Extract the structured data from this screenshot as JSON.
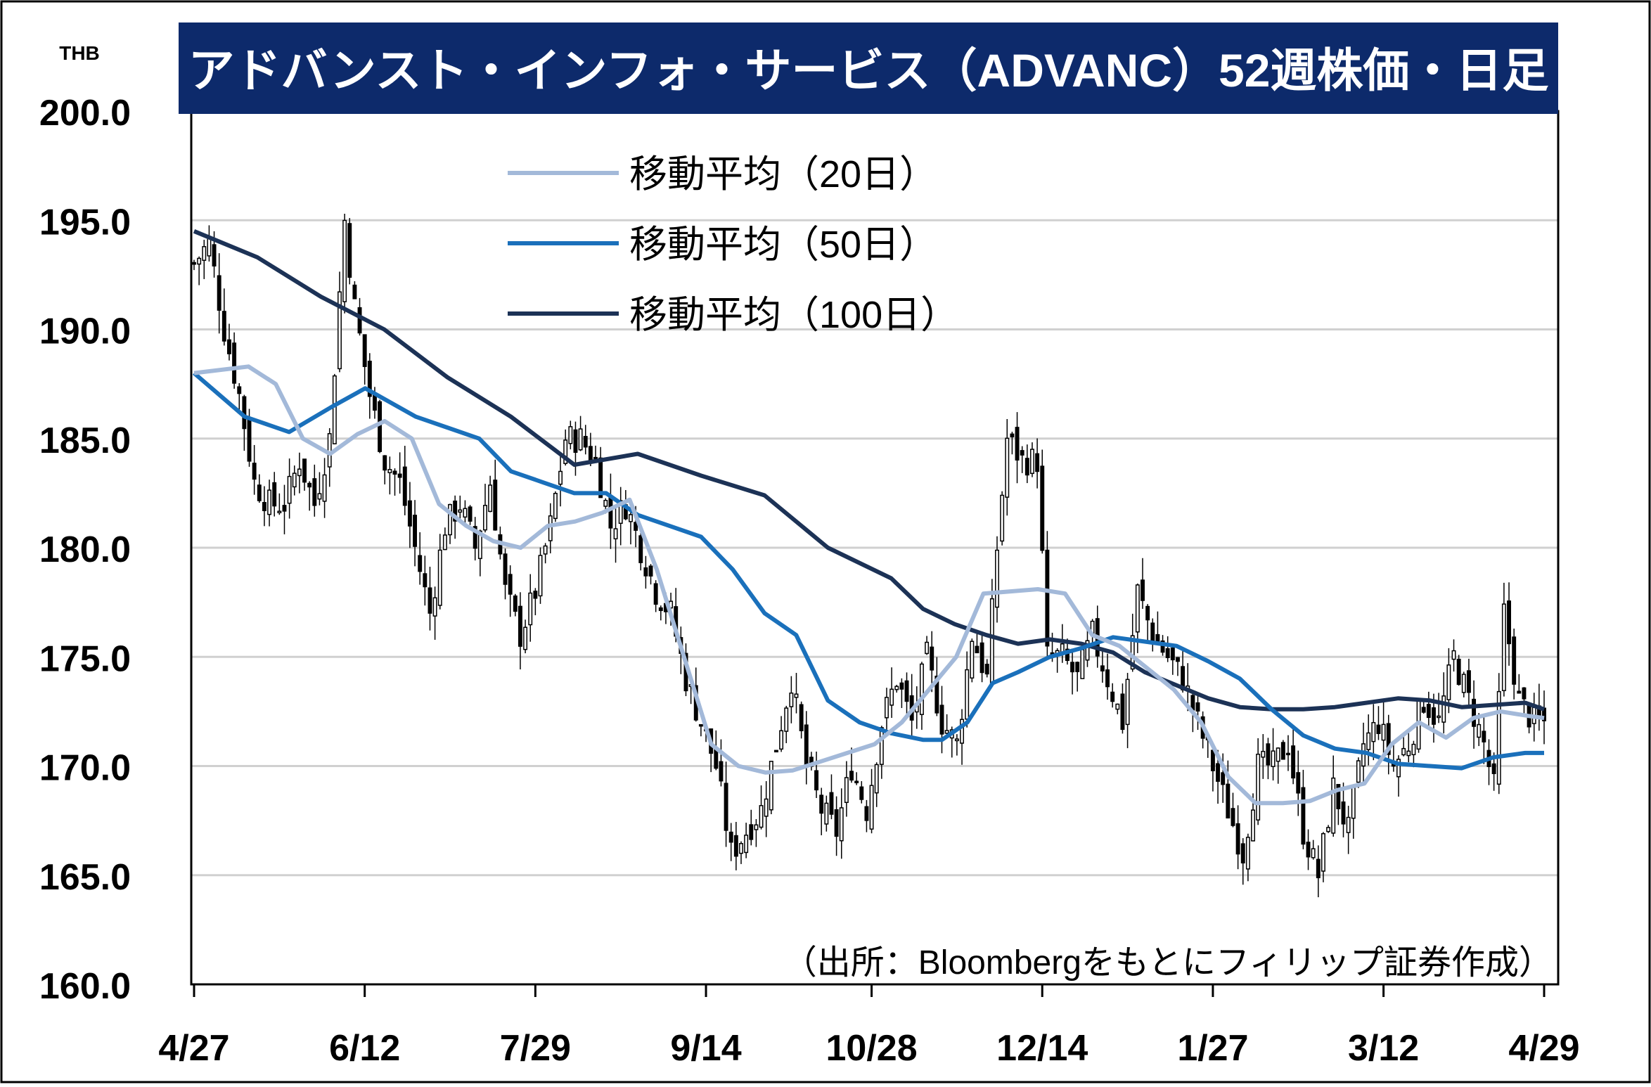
{
  "title": "アドバンスト・インフォ・サービス（ADVANC）52週株価・日足",
  "source_note": "（出所：Bloombergをもとにフィリップ証券作成）",
  "colors": {
    "title_bg": "#0d2a6b",
    "title_text": "#ffffff",
    "ma20": "#a3b9d9",
    "ma50": "#1a70bb",
    "ma100": "#1c3256",
    "candle_stroke": "#000000",
    "bear_fill": "#000000",
    "bull_fill": "#ffffff",
    "grid": "#d0d0d0",
    "frame": "#000000"
  },
  "chart_data": {
    "type": "candlestick",
    "ylabel": "THB",
    "ylim": [
      160,
      200
    ],
    "ytick_step": 5,
    "y_tick_labels": [
      "160.0",
      "165.0",
      "170.0",
      "175.0",
      "180.0",
      "185.0",
      "190.0",
      "195.0",
      "200.0"
    ],
    "x_tick_labels": [
      "4/27",
      "6/12",
      "7/29",
      "9/14",
      "10/28",
      "12/14",
      "1/27",
      "3/12",
      "4/29"
    ],
    "grid": true,
    "legend": [
      {
        "key": "ma20",
        "label": "移動平均（20日）"
      },
      {
        "key": "ma50",
        "label": "移動平均（50日）"
      },
      {
        "key": "ma100",
        "label": "移動平均（100日）"
      }
    ],
    "legend_position": "top-center",
    "close_anchors": [
      [
        0,
        193
      ],
      [
        3,
        194
      ],
      [
        6,
        190
      ],
      [
        9,
        187
      ],
      [
        12,
        183
      ],
      [
        15,
        182
      ],
      [
        18,
        182
      ],
      [
        21,
        184
      ],
      [
        24,
        182
      ],
      [
        27,
        185
      ],
      [
        30,
        195
      ],
      [
        32,
        191
      ],
      [
        35,
        187
      ],
      [
        38,
        184
      ],
      [
        41,
        183
      ],
      [
        44,
        180
      ],
      [
        47,
        177
      ],
      [
        50,
        181
      ],
      [
        53,
        182
      ],
      [
        56,
        180
      ],
      [
        59,
        183
      ],
      [
        62,
        178
      ],
      [
        65,
        176
      ],
      [
        68,
        178
      ],
      [
        71,
        181
      ],
      [
        74,
        185
      ],
      [
        77,
        185
      ],
      [
        80,
        184
      ],
      [
        83,
        181
      ],
      [
        86,
        182
      ],
      [
        89,
        180
      ],
      [
        92,
        178
      ],
      [
        95,
        177
      ],
      [
        98,
        174
      ],
      [
        101,
        172
      ],
      [
        104,
        170
      ],
      [
        107,
        166
      ],
      [
        110,
        167
      ],
      [
        113,
        168
      ],
      [
        116,
        171
      ],
      [
        119,
        174
      ],
      [
        122,
        170
      ],
      [
        125,
        168
      ],
      [
        128,
        167
      ],
      [
        131,
        170
      ],
      [
        134,
        168
      ],
      [
        137,
        172
      ],
      [
        140,
        174
      ],
      [
        143,
        172
      ],
      [
        146,
        175
      ],
      [
        149,
        172
      ],
      [
        152,
        171
      ],
      [
        155,
        176
      ],
      [
        158,
        174
      ],
      [
        160,
        180
      ],
      [
        162,
        185
      ],
      [
        165,
        184
      ],
      [
        168,
        184
      ],
      [
        170,
        175
      ],
      [
        173,
        175
      ],
      [
        176,
        174
      ],
      [
        179,
        176
      ],
      [
        182,
        174
      ],
      [
        185,
        172
      ],
      [
        188,
        178
      ],
      [
        191,
        176
      ],
      [
        194,
        175
      ],
      [
        197,
        174
      ],
      [
        200,
        172
      ],
      [
        203,
        170
      ],
      [
        206,
        168
      ],
      [
        209,
        166
      ],
      [
        212,
        170
      ],
      [
        215,
        170
      ],
      [
        218,
        171
      ],
      [
        221,
        167
      ],
      [
        224,
        165
      ],
      [
        227,
        169
      ],
      [
        230,
        167
      ],
      [
        233,
        171
      ],
      [
        236,
        172
      ],
      [
        239,
        170
      ],
      [
        242,
        171
      ],
      [
        245,
        173
      ],
      [
        248,
        172
      ],
      [
        251,
        175
      ],
      [
        254,
        173
      ],
      [
        257,
        171
      ],
      [
        259,
        169
      ],
      [
        261,
        177
      ],
      [
        264,
        173
      ],
      [
        267,
        172
      ],
      [
        269,
        172
      ]
    ],
    "moving_averages": {
      "ma20": [
        [
          0,
          188
        ],
        [
          10,
          188.3
        ],
        [
          15,
          187.5
        ],
        [
          20,
          185
        ],
        [
          25,
          184.3
        ],
        [
          30,
          185.2
        ],
        [
          35,
          185.8
        ],
        [
          40,
          185
        ],
        [
          45,
          182
        ],
        [
          50,
          181
        ],
        [
          55,
          180.3
        ],
        [
          60,
          180
        ],
        [
          65,
          181
        ],
        [
          70,
          181.2
        ],
        [
          75,
          181.6
        ],
        [
          80,
          182.2
        ],
        [
          85,
          179
        ],
        [
          90,
          175
        ],
        [
          95,
          171
        ],
        [
          100,
          170
        ],
        [
          105,
          169.7
        ],
        [
          110,
          169.8
        ],
        [
          115,
          170.2
        ],
        [
          120,
          170.6
        ],
        [
          125,
          171
        ],
        [
          130,
          172
        ],
        [
          135,
          173.5
        ],
        [
          140,
          175
        ],
        [
          145,
          177.9
        ],
        [
          150,
          178
        ],
        [
          155,
          178.1
        ],
        [
          160,
          177.9
        ],
        [
          165,
          176
        ],
        [
          170,
          175.5
        ],
        [
          175,
          174.5
        ],
        [
          180,
          173.5
        ],
        [
          185,
          172
        ],
        [
          190,
          169.5
        ],
        [
          195,
          168.3
        ],
        [
          200,
          168.3
        ],
        [
          205,
          168.4
        ],
        [
          210,
          168.9
        ],
        [
          215,
          169.2
        ],
        [
          220,
          171
        ],
        [
          225,
          172
        ],
        [
          230,
          171.3
        ],
        [
          235,
          172.2
        ],
        [
          240,
          172.5
        ],
        [
          245,
          172.3
        ],
        [
          248,
          172.2
        ]
      ],
      "ma50": [
        [
          0,
          188
        ],
        [
          8,
          186
        ],
        [
          15,
          185.3
        ],
        [
          22,
          186.5
        ],
        [
          27,
          187.3
        ],
        [
          35,
          186
        ],
        [
          45,
          185
        ],
        [
          50,
          183.5
        ],
        [
          55,
          183
        ],
        [
          60,
          182.5
        ],
        [
          65,
          182.5
        ],
        [
          70,
          181.5
        ],
        [
          75,
          181
        ],
        [
          80,
          180.5
        ],
        [
          85,
          179
        ],
        [
          90,
          177
        ],
        [
          95,
          176
        ],
        [
          100,
          173
        ],
        [
          105,
          172
        ],
        [
          110,
          171.5
        ],
        [
          115,
          171.2
        ],
        [
          118,
          171.2
        ],
        [
          122,
          172
        ],
        [
          126,
          173.8
        ],
        [
          130,
          174.3
        ],
        [
          135,
          175
        ],
        [
          140,
          175.4
        ],
        [
          145,
          175.9
        ],
        [
          150,
          175.7
        ],
        [
          155,
          175.5
        ],
        [
          160,
          174.8
        ],
        [
          165,
          174
        ],
        [
          170,
          172.6
        ],
        [
          175,
          171.4
        ],
        [
          180,
          170.8
        ],
        [
          185,
          170.6
        ],
        [
          190,
          170.1
        ],
        [
          195,
          170
        ],
        [
          200,
          169.9
        ],
        [
          205,
          170.4
        ],
        [
          210,
          170.6
        ],
        [
          213,
          170.6
        ]
      ],
      "ma100": [
        [
          0,
          194.5
        ],
        [
          10,
          193.3
        ],
        [
          20,
          191.5
        ],
        [
          30,
          190
        ],
        [
          40,
          187.8
        ],
        [
          50,
          186
        ],
        [
          60,
          183.8
        ],
        [
          70,
          184.3
        ],
        [
          80,
          183.3
        ],
        [
          90,
          182.4
        ],
        [
          100,
          180
        ],
        [
          110,
          178.6
        ],
        [
          115,
          177.2
        ],
        [
          120,
          176.5
        ],
        [
          125,
          176
        ],
        [
          130,
          175.6
        ],
        [
          135,
          175.8
        ],
        [
          140,
          175.6
        ],
        [
          145,
          175.2
        ],
        [
          150,
          174.3
        ],
        [
          155,
          173.7
        ],
        [
          160,
          173.1
        ],
        [
          165,
          172.7
        ],
        [
          170,
          172.6
        ],
        [
          175,
          172.6
        ],
        [
          180,
          172.7
        ],
        [
          185,
          172.9
        ],
        [
          190,
          173.1
        ],
        [
          195,
          173
        ],
        [
          200,
          172.7
        ],
        [
          205,
          172.8
        ],
        [
          210,
          172.9
        ],
        [
          213,
          172.6
        ]
      ]
    }
  }
}
